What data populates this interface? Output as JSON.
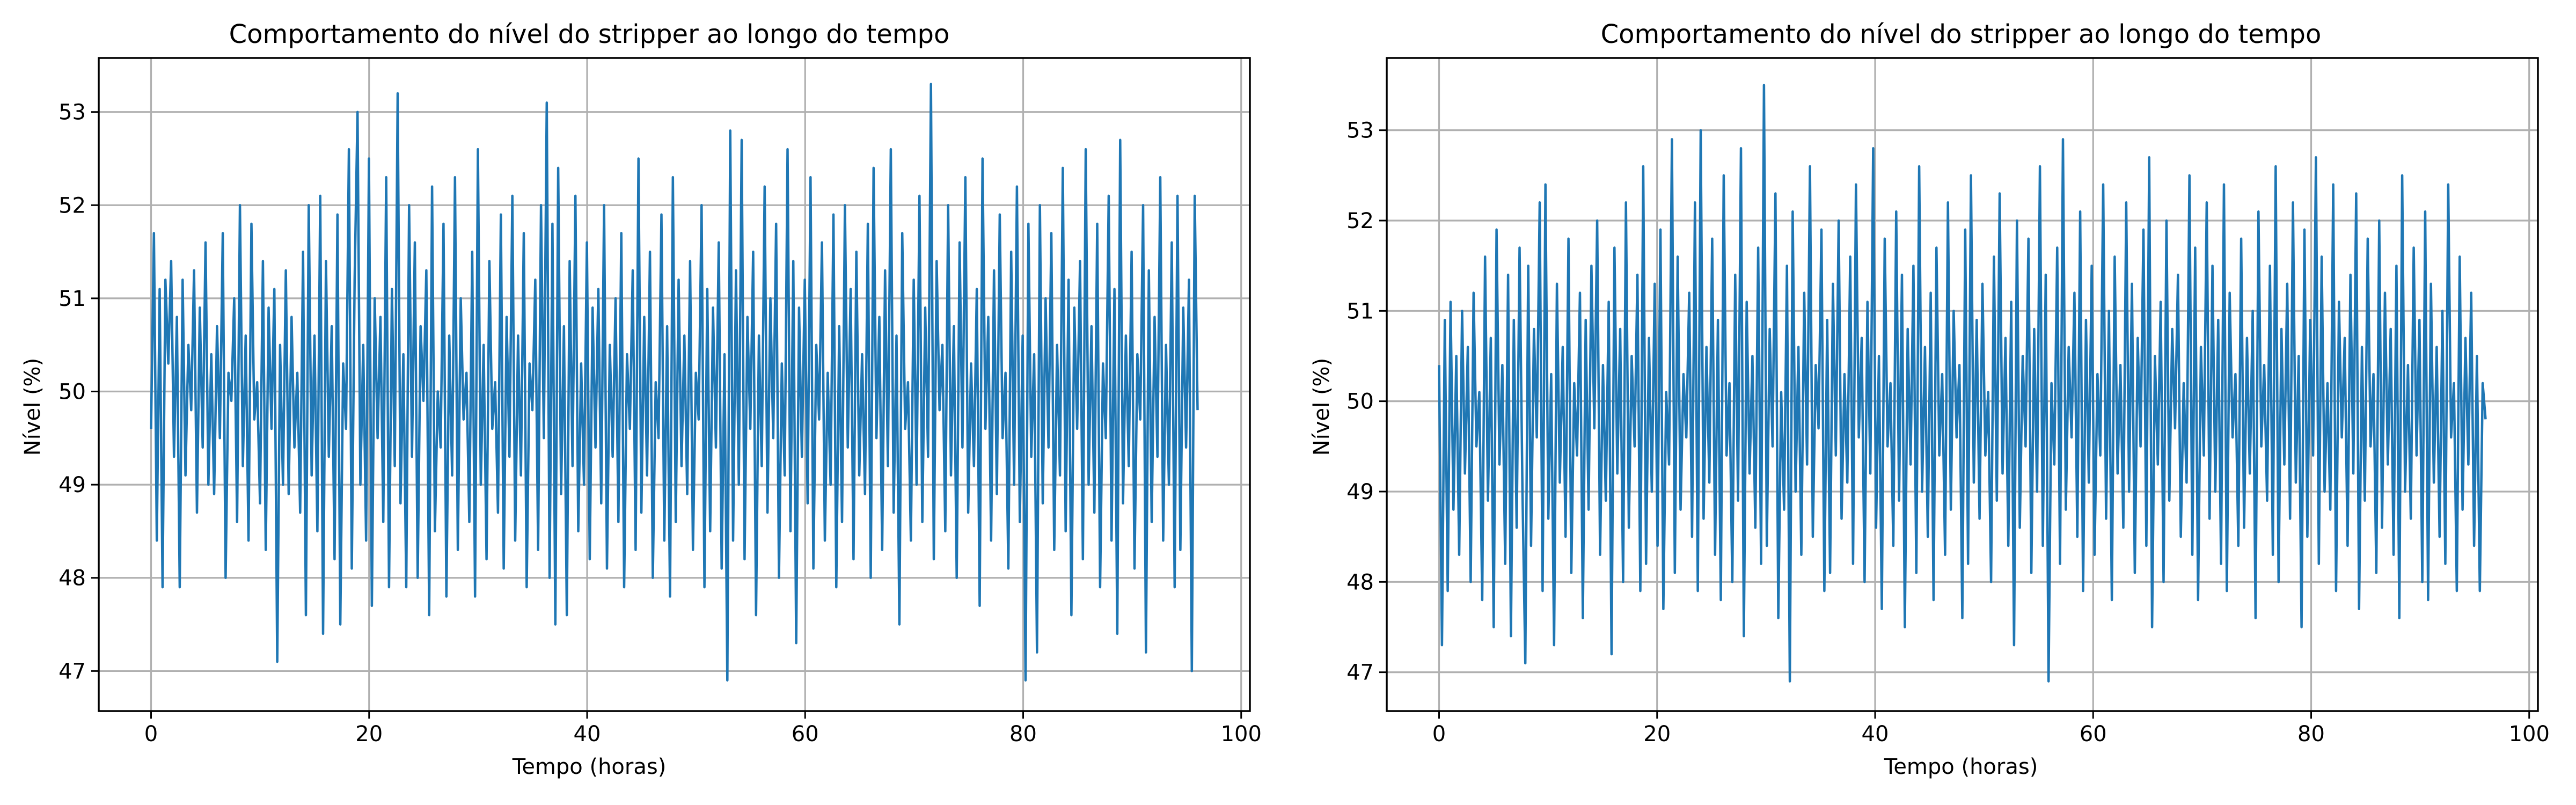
{
  "chart_data": [
    {
      "type": "line",
      "title": "Comportamento do nível do stripper ao longo do tempo",
      "xlabel": "Tempo (horas)",
      "ylabel": "Nível (%)",
      "xlim": [
        -4.8,
        100.8
      ],
      "ylim": [
        46.57,
        53.58
      ],
      "xticks": [
        0,
        20,
        40,
        60,
        80,
        100
      ],
      "yticks": [
        47,
        48,
        49,
        50,
        51,
        52,
        53
      ],
      "grid": true,
      "colors": {
        "series": "#1f77b4"
      },
      "x_range": [
        0,
        96
      ],
      "series": [
        {
          "color": "#1f77b4",
          "values": [
            49.6,
            51.7,
            48.4,
            51.1,
            47.9,
            51.2,
            50.3,
            51.4,
            49.3,
            50.8,
            47.9,
            51.2,
            49.1,
            50.5,
            49.8,
            51.3,
            48.7,
            50.9,
            49.4,
            51.6,
            49.0,
            50.4,
            48.9,
            50.7,
            49.5,
            51.7,
            48.0,
            50.2,
            49.9,
            51.0,
            48.6,
            52.0,
            49.2,
            50.6,
            48.4,
            51.8,
            49.7,
            50.1,
            48.8,
            51.4,
            48.3,
            50.9,
            49.6,
            51.1,
            47.1,
            50.5,
            49.0,
            51.3,
            48.9,
            50.8,
            49.4,
            50.2,
            48.7,
            51.5,
            47.6,
            52.0,
            49.1,
            50.6,
            48.5,
            52.1,
            47.4,
            51.4,
            49.3,
            50.7,
            48.2,
            51.9,
            47.5,
            50.3,
            49.6,
            52.6,
            48.1,
            51.2,
            53.0,
            49.0,
            50.5,
            48.4,
            52.5,
            47.7,
            51.0,
            49.5,
            50.8,
            48.6,
            52.3,
            47.9,
            51.1,
            49.2,
            53.2,
            48.8,
            50.4,
            47.9,
            52.0,
            49.3,
            51.6,
            48.0,
            50.7,
            49.9,
            51.3,
            47.6,
            52.2,
            48.5,
            50.0,
            49.4,
            51.8,
            47.8,
            50.6,
            49.1,
            52.3,
            48.3,
            51.0,
            49.7,
            50.2,
            48.6,
            51.5,
            47.8,
            52.6,
            49.0,
            50.5,
            48.2,
            51.4,
            49.6,
            50.1,
            48.7,
            51.9,
            48.1,
            50.8,
            49.3,
            52.1,
            48.4,
            50.6,
            49.1,
            51.7,
            47.9,
            50.3,
            49.8,
            51.2,
            48.3,
            52.0,
            49.5,
            53.1,
            48.0,
            51.8,
            47.5,
            52.4,
            48.9,
            50.7,
            47.6,
            51.4,
            49.2,
            52.1,
            48.5,
            50.3,
            49.0,
            51.6,
            48.2,
            50.9,
            49.4,
            51.1,
            48.8,
            52.0,
            48.1,
            50.5,
            49.3,
            51.0,
            48.6,
            51.7,
            47.9,
            50.4,
            49.6,
            51.3,
            48.3,
            52.5,
            48.7,
            50.8,
            49.1,
            51.5,
            48.0,
            50.1,
            49.5,
            51.9,
            48.4,
            50.7,
            47.8,
            52.3,
            48.6,
            51.2,
            49.2,
            50.6,
            48.9,
            51.4,
            48.3,
            50.2,
            49.7,
            52.0,
            47.9,
            51.1,
            48.5,
            50.9,
            49.4,
            51.6,
            48.1,
            50.4,
            46.9,
            52.8,
            48.4,
            51.3,
            49.0,
            52.7,
            48.2,
            50.8,
            49.6,
            51.5,
            47.6,
            50.6,
            49.2,
            52.2,
            48.7,
            51.0,
            49.5,
            51.8,
            48.0,
            50.3,
            49.1,
            52.6,
            48.5,
            51.4,
            47.3,
            50.9,
            49.3,
            51.2,
            48.8,
            52.3,
            48.1,
            50.5,
            49.7,
            51.6,
            48.4,
            50.2,
            49.0,
            51.9,
            47.9,
            50.7,
            48.6,
            52.0,
            49.4,
            51.1,
            48.2,
            51.5,
            49.1,
            50.4,
            48.9,
            51.8,
            48.0,
            52.4,
            49.5,
            50.8,
            48.3,
            51.3,
            49.2,
            52.6,
            48.7,
            50.6,
            47.5,
            51.7,
            49.6,
            50.1,
            48.4,
            51.2,
            49.0,
            52.1,
            48.6,
            50.9,
            49.3,
            53.3,
            48.2,
            51.4,
            49.8,
            50.5,
            48.5,
            52.0,
            49.1,
            50.7,
            48.0,
            51.6,
            49.4,
            52.3,
            48.7,
            50.3,
            49.2,
            51.1,
            47.7,
            52.5,
            49.6,
            50.8,
            48.4,
            51.3,
            48.9,
            51.9,
            49.5,
            50.2,
            48.1,
            51.5,
            49.0,
            52.2,
            48.6,
            50.6,
            46.9,
            51.8,
            49.3,
            50.4,
            47.2,
            52.0,
            48.8,
            51.0,
            49.4,
            51.7,
            48.3,
            50.5,
            49.1,
            52.4,
            48.5,
            51.2,
            47.6,
            50.9,
            49.6,
            51.4,
            48.2,
            52.6,
            49.0,
            50.7,
            48.7,
            51.8,
            47.9,
            50.3,
            49.5,
            52.1,
            48.4,
            51.1,
            47.4,
            52.7,
            48.8,
            50.6,
            49.2,
            51.5,
            48.1,
            50.4,
            49.7,
            52.0,
            47.2,
            51.3,
            48.6,
            50.8,
            49.3,
            52.3,
            48.4,
            50.5,
            49.0,
            51.6,
            47.9,
            52.1,
            48.3,
            50.9,
            49.4,
            51.2,
            47.0,
            52.1,
            49.8
          ]
        }
      ]
    },
    {
      "type": "line",
      "title": "Comportamento do nível do stripper ao longo do tempo",
      "xlabel": "Tempo (horas)",
      "ylabel": "Nível (%)",
      "xlim": [
        -4.8,
        100.8
      ],
      "ylim": [
        46.57,
        53.8
      ],
      "xticks": [
        0,
        20,
        40,
        60,
        80,
        100
      ],
      "yticks": [
        47,
        48,
        49,
        50,
        51,
        52,
        53
      ],
      "grid": true,
      "colors": {
        "series": "#1f77b4"
      },
      "x_range": [
        0,
        96
      ],
      "series": [
        {
          "color": "#1f77b4",
          "values": [
            50.4,
            47.3,
            50.9,
            47.9,
            51.1,
            48.8,
            50.5,
            48.3,
            51.0,
            49.2,
            50.6,
            48.0,
            51.2,
            49.5,
            50.1,
            47.8,
            51.6,
            48.9,
            50.7,
            47.5,
            51.9,
            49.3,
            50.4,
            48.2,
            51.4,
            47.4,
            50.9,
            48.6,
            51.7,
            49.0,
            47.1,
            51.5,
            48.4,
            50.8,
            49.6,
            52.2,
            47.9,
            52.4,
            48.7,
            50.3,
            47.3,
            51.3,
            49.1,
            50.6,
            48.5,
            51.8,
            48.1,
            50.2,
            49.4,
            51.2,
            47.6,
            50.9,
            48.8,
            51.5,
            49.7,
            52.0,
            48.3,
            50.4,
            48.9,
            51.1,
            47.2,
            51.7,
            49.2,
            50.8,
            48.0,
            52.2,
            48.6,
            50.5,
            49.5,
            51.4,
            47.9,
            52.6,
            48.2,
            50.7,
            49.0,
            51.3,
            48.4,
            51.9,
            47.7,
            50.1,
            49.3,
            52.9,
            48.1,
            51.6,
            48.8,
            50.3,
            49.6,
            51.2,
            48.5,
            52.2,
            47.9,
            53.0,
            48.7,
            50.6,
            49.1,
            51.8,
            48.3,
            50.9,
            47.8,
            52.5,
            49.4,
            50.2,
            48.0,
            51.4,
            48.9,
            52.8,
            47.4,
            51.1,
            49.2,
            50.5,
            48.6,
            51.7,
            48.2,
            53.5,
            48.4,
            50.8,
            49.5,
            52.3,
            47.6,
            50.1,
            48.8,
            51.5,
            46.9,
            52.1,
            49.0,
            50.6,
            48.3,
            51.2,
            49.3,
            52.6,
            48.5,
            50.4,
            49.7,
            51.9,
            47.9,
            50.9,
            48.1,
            51.3,
            49.4,
            52.0,
            48.7,
            50.3,
            49.1,
            51.6,
            48.2,
            52.4,
            49.6,
            50.7,
            48.0,
            51.1,
            49.2,
            52.8,
            48.6,
            50.5,
            47.7,
            51.8,
            49.5,
            50.2,
            48.4,
            52.1,
            48.9,
            51.4,
            47.5,
            50.8,
            49.3,
            51.5,
            48.1,
            52.6,
            49.0,
            50.6,
            48.5,
            51.2,
            47.8,
            51.7,
            49.4,
            50.3,
            48.3,
            52.2,
            48.8,
            51.0,
            49.6,
            50.4,
            47.6,
            51.9,
            48.2,
            52.5,
            49.1,
            50.9,
            48.7,
            51.3,
            49.4,
            50.1,
            48.0,
            51.6,
            48.9,
            52.3,
            49.2,
            50.7,
            48.4,
            51.1,
            47.3,
            52.0,
            48.6,
            50.5,
            49.5,
            51.8,
            48.1,
            50.8,
            49.0,
            52.6,
            48.4,
            51.4,
            46.9,
            50.2,
            49.3,
            51.7,
            48.2,
            52.9,
            48.8,
            50.6,
            49.6,
            51.2,
            48.5,
            52.1,
            47.9,
            50.9,
            49.1,
            51.5,
            48.3,
            50.3,
            49.4,
            52.4,
            48.7,
            51.0,
            47.8,
            51.6,
            49.2,
            50.4,
            48.6,
            52.2,
            49.0,
            51.3,
            48.1,
            50.7,
            49.5,
            51.9,
            48.4,
            52.7,
            47.5,
            50.5,
            49.3,
            51.1,
            48.0,
            52.0,
            48.9,
            50.8,
            49.7,
            51.4,
            48.5,
            50.2,
            49.1,
            52.5,
            48.3,
            51.7,
            47.8,
            50.6,
            49.4,
            52.2,
            48.7,
            51.5,
            49.0,
            50.9,
            48.2,
            52.4,
            47.9,
            51.2,
            49.6,
            50.3,
            48.4,
            51.8,
            48.6,
            50.7,
            49.2,
            51.0,
            47.6,
            52.1,
            49.5,
            50.4,
            48.9,
            51.5,
            48.3,
            52.6,
            48.0,
            50.8,
            49.3,
            51.3,
            48.7,
            52.2,
            49.1,
            50.5,
            47.5,
            51.9,
            48.5,
            50.9,
            49.4,
            52.7,
            48.2,
            51.6,
            49.0,
            50.2,
            48.8,
            52.4,
            47.9,
            51.1,
            49.6,
            50.7,
            48.4,
            51.4,
            49.2,
            52.3,
            47.7,
            50.6,
            48.9,
            51.8,
            49.5,
            50.3,
            48.1,
            52.0,
            48.6,
            51.2,
            49.3,
            50.8,
            48.3,
            51.5,
            47.6,
            52.5,
            49.0,
            50.4,
            48.7,
            51.7,
            49.4,
            50.9,
            48.0,
            52.1,
            47.8,
            51.3,
            49.1,
            50.6,
            48.5,
            51.0,
            48.2,
            52.4,
            49.6,
            50.2,
            47.9,
            51.6,
            48.8,
            50.7,
            49.3,
            51.2,
            48.4,
            50.5,
            47.9,
            50.2,
            49.8
          ]
        }
      ]
    }
  ]
}
